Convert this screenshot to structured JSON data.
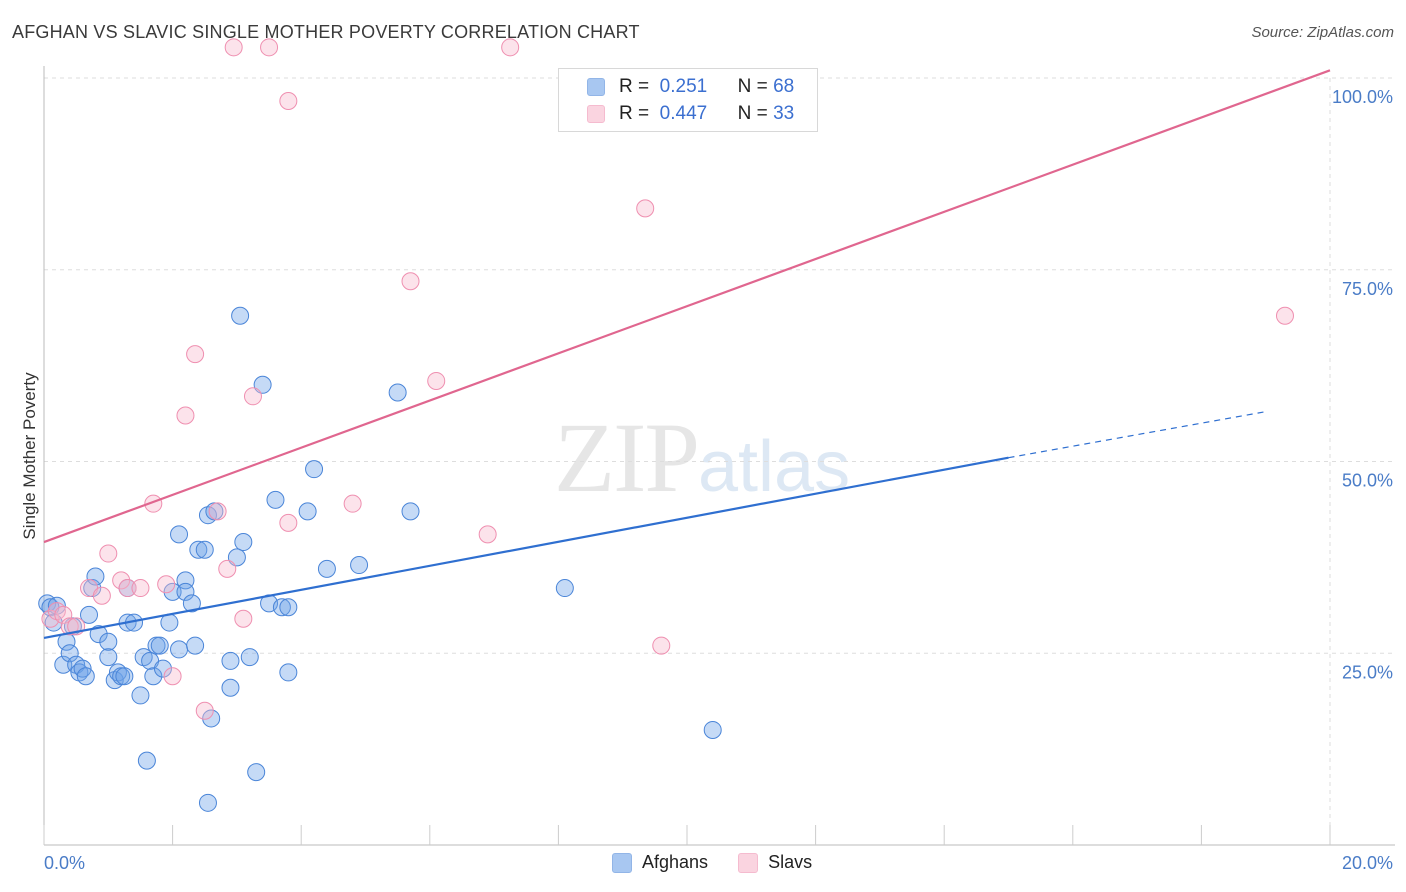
{
  "title": "AFGHAN VS SLAVIC SINGLE MOTHER POVERTY CORRELATION CHART",
  "source": "Source: ZipAtlas.com",
  "watermark": {
    "zip": "ZIP",
    "atlas": "atlas"
  },
  "legend": {
    "r_label": "R =",
    "n_label": "N =",
    "rows": [
      {
        "name": "Afghans",
        "r": "0.251",
        "n": "68",
        "color": "#6fa3e8"
      },
      {
        "name": "Slavs",
        "r": "0.447",
        "n": "33",
        "color": "#f19bb8"
      }
    ]
  },
  "chart_data": {
    "type": "scatter",
    "title": "AFGHAN VS SLAVIC SINGLE MOTHER POVERTY CORRELATION CHART",
    "xlabel": "",
    "ylabel": "Single Mother Poverty",
    "xlim": [
      0,
      20
    ],
    "ylim": [
      0,
      100
    ],
    "x_ticks": [
      "0.0%",
      "20.0%"
    ],
    "y_ticks": [
      {
        "value": 25,
        "label": "25.0%"
      },
      {
        "value": 50,
        "label": "50.0%"
      },
      {
        "value": 75,
        "label": "75.0%"
      },
      {
        "value": 100,
        "label": "100.0%"
      }
    ],
    "grid": true,
    "series": [
      {
        "name": "Afghans",
        "color": "#6fa3e8",
        "stroke": "#4a85d8",
        "trend": {
          "x0": 0,
          "y0": 27.0,
          "x1": 15.0,
          "y1": 50.5,
          "dash_x1": 19.0,
          "dash_y1": 56.5,
          "color": "#2f6fd0"
        },
        "points": [
          [
            0.05,
            31.5
          ],
          [
            0.1,
            31.0
          ],
          [
            0.15,
            29.0
          ],
          [
            0.2,
            31.2
          ],
          [
            0.3,
            23.5
          ],
          [
            0.35,
            26.5
          ],
          [
            0.4,
            25.0
          ],
          [
            0.45,
            28.5
          ],
          [
            0.5,
            23.5
          ],
          [
            0.55,
            22.5
          ],
          [
            0.6,
            23.0
          ],
          [
            0.65,
            22.0
          ],
          [
            0.7,
            30.0
          ],
          [
            0.75,
            33.5
          ],
          [
            0.8,
            35.0
          ],
          [
            0.85,
            27.5
          ],
          [
            1.0,
            24.5
          ],
          [
            1.0,
            26.5
          ],
          [
            1.1,
            21.5
          ],
          [
            1.15,
            22.5
          ],
          [
            1.2,
            22.0
          ],
          [
            1.25,
            22.0
          ],
          [
            1.3,
            33.5
          ],
          [
            1.3,
            29.0
          ],
          [
            1.4,
            29.0
          ],
          [
            1.5,
            19.5
          ],
          [
            1.55,
            24.5
          ],
          [
            1.6,
            11.0
          ],
          [
            1.65,
            24.0
          ],
          [
            1.7,
            22.0
          ],
          [
            1.75,
            26.0
          ],
          [
            1.8,
            26.0
          ],
          [
            1.85,
            23.0
          ],
          [
            1.95,
            29.0
          ],
          [
            2.0,
            33.0
          ],
          [
            2.1,
            25.5
          ],
          [
            2.1,
            40.5
          ],
          [
            2.2,
            34.5
          ],
          [
            2.2,
            33.0
          ],
          [
            2.3,
            31.5
          ],
          [
            2.35,
            26.0
          ],
          [
            2.4,
            38.5
          ],
          [
            2.5,
            38.5
          ],
          [
            2.55,
            5.5
          ],
          [
            2.6,
            16.5
          ],
          [
            2.55,
            43.0
          ],
          [
            2.65,
            43.5
          ],
          [
            2.9,
            20.5
          ],
          [
            2.9,
            24.0
          ],
          [
            3.0,
            37.5
          ],
          [
            3.05,
            69.0
          ],
          [
            3.1,
            39.5
          ],
          [
            3.2,
            24.5
          ],
          [
            3.3,
            9.5
          ],
          [
            3.4,
            60.0
          ],
          [
            3.5,
            31.5
          ],
          [
            3.6,
            45.0
          ],
          [
            3.7,
            31.0
          ],
          [
            3.8,
            31.0
          ],
          [
            3.8,
            22.5
          ],
          [
            4.1,
            43.5
          ],
          [
            4.2,
            49.0
          ],
          [
            4.4,
            36.0
          ],
          [
            4.9,
            36.5
          ],
          [
            5.5,
            59.0
          ],
          [
            5.7,
            43.5
          ],
          [
            8.1,
            33.5
          ],
          [
            10.4,
            15.0
          ]
        ]
      },
      {
        "name": "Slavs",
        "color": "#f7b8cc",
        "stroke": "#ef8fb0",
        "trend": {
          "x0": 0,
          "y0": 39.5,
          "x1": 20.0,
          "y1": 101.0,
          "color": "#e0668f"
        },
        "points": [
          [
            0.1,
            29.5
          ],
          [
            0.2,
            30.5
          ],
          [
            0.3,
            30.0
          ],
          [
            0.4,
            28.5
          ],
          [
            0.5,
            28.5
          ],
          [
            0.7,
            33.5
          ],
          [
            0.9,
            32.5
          ],
          [
            1.0,
            38.0
          ],
          [
            1.2,
            34.5
          ],
          [
            1.3,
            33.5
          ],
          [
            1.5,
            33.5
          ],
          [
            1.7,
            44.5
          ],
          [
            1.9,
            34.0
          ],
          [
            2.0,
            22.0
          ],
          [
            2.2,
            56.0
          ],
          [
            2.35,
            64.0
          ],
          [
            2.5,
            17.5
          ],
          [
            2.7,
            43.5
          ],
          [
            2.85,
            36.0
          ],
          [
            2.95,
            104.0
          ],
          [
            3.1,
            29.5
          ],
          [
            3.25,
            58.5
          ],
          [
            3.5,
            104.0
          ],
          [
            3.8,
            42.0
          ],
          [
            3.8,
            97.0
          ],
          [
            4.8,
            44.5
          ],
          [
            5.7,
            73.5
          ],
          [
            6.1,
            60.5
          ],
          [
            6.9,
            40.5
          ],
          [
            7.25,
            104.0
          ],
          [
            9.35,
            83.0
          ],
          [
            9.6,
            26.0
          ],
          [
            19.3,
            69.0
          ]
        ]
      }
    ]
  }
}
